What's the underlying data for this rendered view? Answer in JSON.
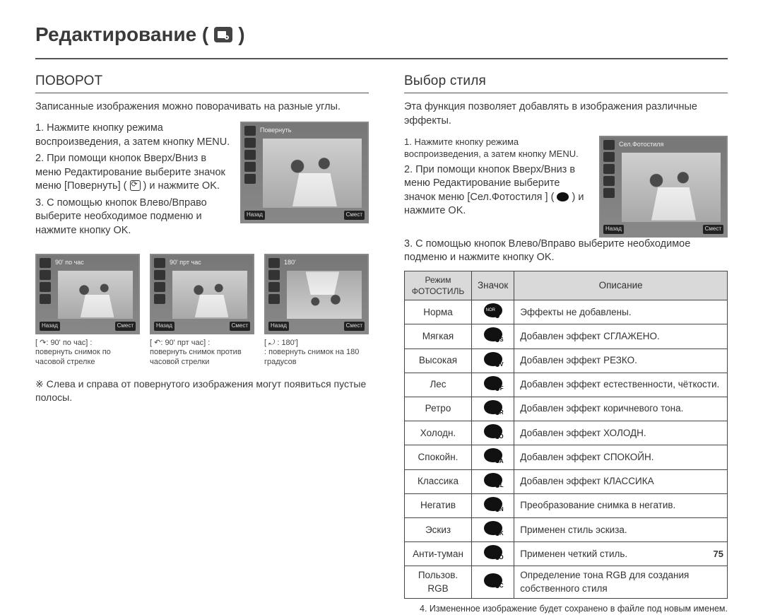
{
  "page": {
    "title": "Редактирование (",
    "title_close": " )",
    "number": "75"
  },
  "left": {
    "heading": "ПОВОРОТ",
    "intro": "Записанные изображения можно поворачивать на разные углы.",
    "steps": {
      "s1": "1. Нажмите кнопку режима воспроизведения, а затем кнопку MENU.",
      "s2a": "2. При помощи кнопок Вверх/Вниз в меню Редактирование выберите значок меню [Повернуть] ( ",
      "s2b": " ) и нажмите OK.",
      "s3": "3. С помощью кнопок Влево/Вправо выберите необходимое подменю и нажмите кнопку OK."
    },
    "shot": {
      "top_label": "Повернуть",
      "bottom_left": "Назад",
      "bottom_right": "Смест"
    },
    "thumbs": [
      {
        "head": "[ ↷: 90' по час] :",
        "desc": "повернуть снимок по часовой стрелке"
      },
      {
        "head": "[ ↶: 90' прт час] :",
        "desc": "повернуть снимок против часовой стрелки"
      },
      {
        "head": "[ ⤾ : 180']",
        "desc": ": повернуть снимок на 180 градусов"
      }
    ],
    "note": "※ Слева и справа от повернутого изображения могут появиться пустые полосы."
  },
  "right": {
    "heading": "Выбор стиля",
    "intro": "Эта функция позволяет добавлять в изображения различные эффекты.",
    "steps": {
      "s1": "1. Нажмите кнопку режима воспроизведения, а затем кнопку MENU.",
      "s2a": "2. При помощи кнопок Вверх/Вниз в меню Редактирование выберите значок меню [Сел.Фотостиля ] ( ",
      "s2b": " ) и нажмите OK.",
      "s3": "3. С помощью кнопок Влево/Вправо выберите необходимое подменю и нажмите кнопку OK."
    },
    "shot": {
      "top_label": "Сел.Фотостиля",
      "bottom_left": "Назад",
      "bottom_right": "Смест"
    },
    "table": {
      "h1": "Режим ФОТОСТИЛЬ",
      "h2": "Значок",
      "h3": "Описание",
      "rows": [
        {
          "name": "Норма",
          "sub": "NOR",
          "desc": "Эффекты не добавлены."
        },
        {
          "name": "Мягкая",
          "sub": "S",
          "desc": "Добавлен эффект СГЛАЖЕНО."
        },
        {
          "name": "Высокая",
          "sub": "V",
          "desc": "Добавлен эффект РЕЗКО."
        },
        {
          "name": "Лес",
          "sub": "F",
          "desc": "Добавлен эффект естественности, чёткости."
        },
        {
          "name": "Ретро",
          "sub": "R",
          "desc": "Добавлен эффект коричневого тона."
        },
        {
          "name": "Холодн.",
          "sub": "CO",
          "desc": "Добавлен эффект ХОЛОДН."
        },
        {
          "name": "Спокойн.",
          "sub": "CA",
          "desc": "Добавлен эффект СПОКОЙН."
        },
        {
          "name": "Классика",
          "sub": "CL",
          "desc": "Добавлен эффект КЛАССИКА"
        },
        {
          "name": "Негатив",
          "sub": "N",
          "desc": "Преобразование снимка в негатив."
        },
        {
          "name": "Эскиз",
          "sub": "SK",
          "desc": "Применен стиль эскиза."
        },
        {
          "name": "Анти-туман",
          "sub": "FO",
          "desc": "Применен четкий стиль."
        },
        {
          "name": "Пользов. RGB",
          "sub": "C",
          "desc": "Определение тона RGB для создания собственного стиля"
        }
      ]
    },
    "footnote": "4. Измененное изображение будет сохранено в файле под новым именем."
  }
}
